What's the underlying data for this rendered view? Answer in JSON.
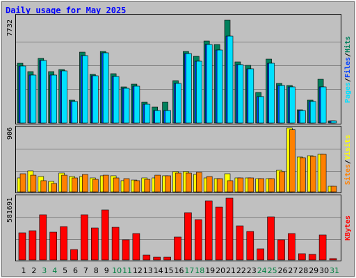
{
  "chart_data": [
    {
      "type": "bar",
      "title": "Daily usage for May 2025",
      "ylim": [
        0,
        7732
      ],
      "yticks": [
        7732
      ],
      "legend_separator": "/",
      "series": [
        {
          "name": "Hits",
          "color": "#00805c",
          "values": [
            4493,
            3866,
            4858,
            3866,
            4022,
            1724,
            5328,
            3657,
            5381,
            3709,
            2716,
            2925,
            1567,
            1201,
            1567,
            3187,
            5381,
            5015,
            6164,
            5903,
            7732,
            4597,
            4336,
            2299,
            4806,
            2978,
            2821,
            993,
            1724,
            3291,
            157
          ]
        },
        {
          "name": "Files",
          "color": "#0040ff",
          "values": [
            4284,
            3605,
            4702,
            3605,
            3918,
            1619,
            5067,
            3552,
            5276,
            3500,
            2612,
            2769,
            1410,
            940,
            940,
            2978,
            5224,
            4649,
            5903,
            5485,
            6530,
            4388,
            4075,
            1985,
            4493,
            2821,
            2716,
            940,
            1619,
            2716,
            157
          ]
        },
        {
          "name": "Pages",
          "color": "#00e0ff",
          "values": [
            4284,
            3605,
            4702,
            3605,
            3918,
            1619,
            5067,
            3552,
            5276,
            3500,
            2612,
            2769,
            1410,
            940,
            940,
            2978,
            5224,
            4649,
            5903,
            5485,
            6530,
            4388,
            4075,
            1985,
            4493,
            2821,
            2716,
            940,
            1619,
            2716,
            157
          ]
        }
      ]
    },
    {
      "type": "bar",
      "ylim": [
        0,
        906
      ],
      "yticks": [
        906
      ],
      "legend_separator": "/",
      "series": [
        {
          "name": "Visits",
          "color": "#ffff00",
          "values": [
            197,
            296,
            217,
            148,
            266,
            217,
            217,
            197,
            227,
            227,
            158,
            167,
            197,
            197,
            227,
            286,
            286,
            246,
            197,
            187,
            256,
            197,
            197,
            187,
            187,
            305,
            906,
            493,
            512,
            532,
            79
          ]
        },
        {
          "name": "Sites",
          "color": "#ff8000",
          "values": [
            256,
            236,
            158,
            118,
            236,
            197,
            246,
            177,
            236,
            197,
            187,
            158,
            177,
            236,
            227,
            266,
            266,
            276,
            217,
            187,
            158,
            197,
            197,
            187,
            187,
            286,
            880,
            483,
            502,
            532,
            79
          ]
        }
      ]
    },
    {
      "type": "bar",
      "ylim": [
        0,
        581691
      ],
      "yticks": [
        581691
      ],
      "series": [
        {
          "name": "KBytes",
          "color": "#ff0000",
          "values": [
            254904,
            274512,
            424840,
            261440,
            313728,
            98040,
            424840,
            300656,
            470592,
            307192,
            189544,
            248368,
            45752,
            26144,
            26144,
            215688,
            444448,
            379088,
            555560,
            496736,
            581691,
            320264,
            267976,
            104576,
            405232,
            189544,
            248368,
            58824,
            52288,
            235296,
            13072
          ]
        }
      ],
      "categories": [
        "1",
        "2",
        "3",
        "4",
        "5",
        "6",
        "7",
        "8",
        "9",
        "10",
        "11",
        "12",
        "13",
        "14",
        "15",
        "16",
        "17",
        "18",
        "19",
        "20",
        "21",
        "22",
        "23",
        "24",
        "25",
        "26",
        "27",
        "28",
        "29",
        "30",
        "31"
      ],
      "category_colors": [
        "#000000",
        "#000000",
        "#008040",
        "#008040",
        "#000000",
        "#000000",
        "#000000",
        "#000000",
        "#000000",
        "#008040",
        "#008040",
        "#000000",
        "#000000",
        "#000000",
        "#000000",
        "#000000",
        "#008040",
        "#008040",
        "#000000",
        "#000000",
        "#000000",
        "#000000",
        "#000000",
        "#008040",
        "#008040",
        "#000000",
        "#000000",
        "#000000",
        "#000000",
        "#000000",
        "#008040"
      ]
    }
  ]
}
